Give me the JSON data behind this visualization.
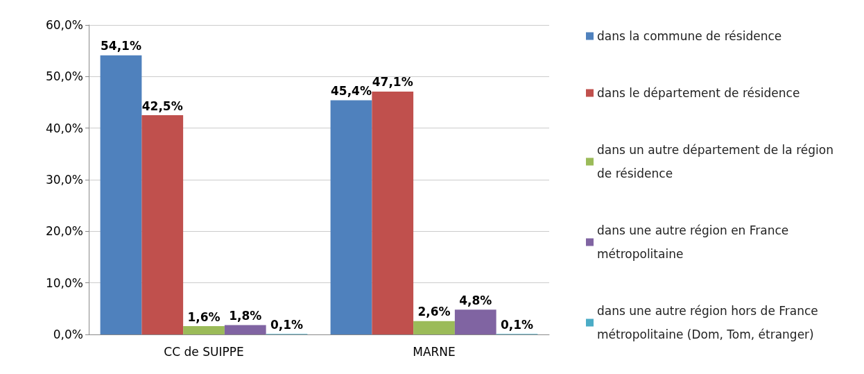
{
  "chart_data": {
    "type": "bar",
    "categories": [
      "CC de SUIPPE",
      "MARNE"
    ],
    "series": [
      {
        "name": "dans la commune de résidence",
        "color": "#4f81bd",
        "values": [
          54.1,
          45.4
        ],
        "value_labels": [
          "54,1%",
          "45,4%"
        ]
      },
      {
        "name": "dans le département de résidence",
        "color": "#c0504d",
        "values": [
          42.5,
          47.1
        ],
        "value_labels": [
          "42,5%",
          "47,1%"
        ]
      },
      {
        "name": "dans un autre département de la région de résidence",
        "color": "#9bbb59",
        "values": [
          1.6,
          2.6
        ],
        "value_labels": [
          "1,6%",
          "2,6%"
        ]
      },
      {
        "name": "dans une autre région en France métropolitaine",
        "color": "#8064a2",
        "values": [
          1.8,
          4.8
        ],
        "value_labels": [
          "1,8%",
          "4,8%"
        ]
      },
      {
        "name": "dans une autre région hors de France métropolitaine (Dom, Tom, étranger)",
        "color": "#4bacc6",
        "values": [
          0.1,
          0.1
        ],
        "value_labels": [
          "0,1%",
          "0,1%"
        ]
      }
    ],
    "ylim": [
      0,
      60
    ],
    "yticks": [
      {
        "value": 0,
        "label": "0,0%"
      },
      {
        "value": 10,
        "label": "10,0%"
      },
      {
        "value": 20,
        "label": "20,0%"
      },
      {
        "value": 30,
        "label": "30,0%"
      },
      {
        "value": 40,
        "label": "40,0%"
      },
      {
        "value": 50,
        "label": "50,0%"
      },
      {
        "value": 60,
        "label": "60,0%"
      }
    ],
    "grid": "y",
    "legend": "right"
  }
}
